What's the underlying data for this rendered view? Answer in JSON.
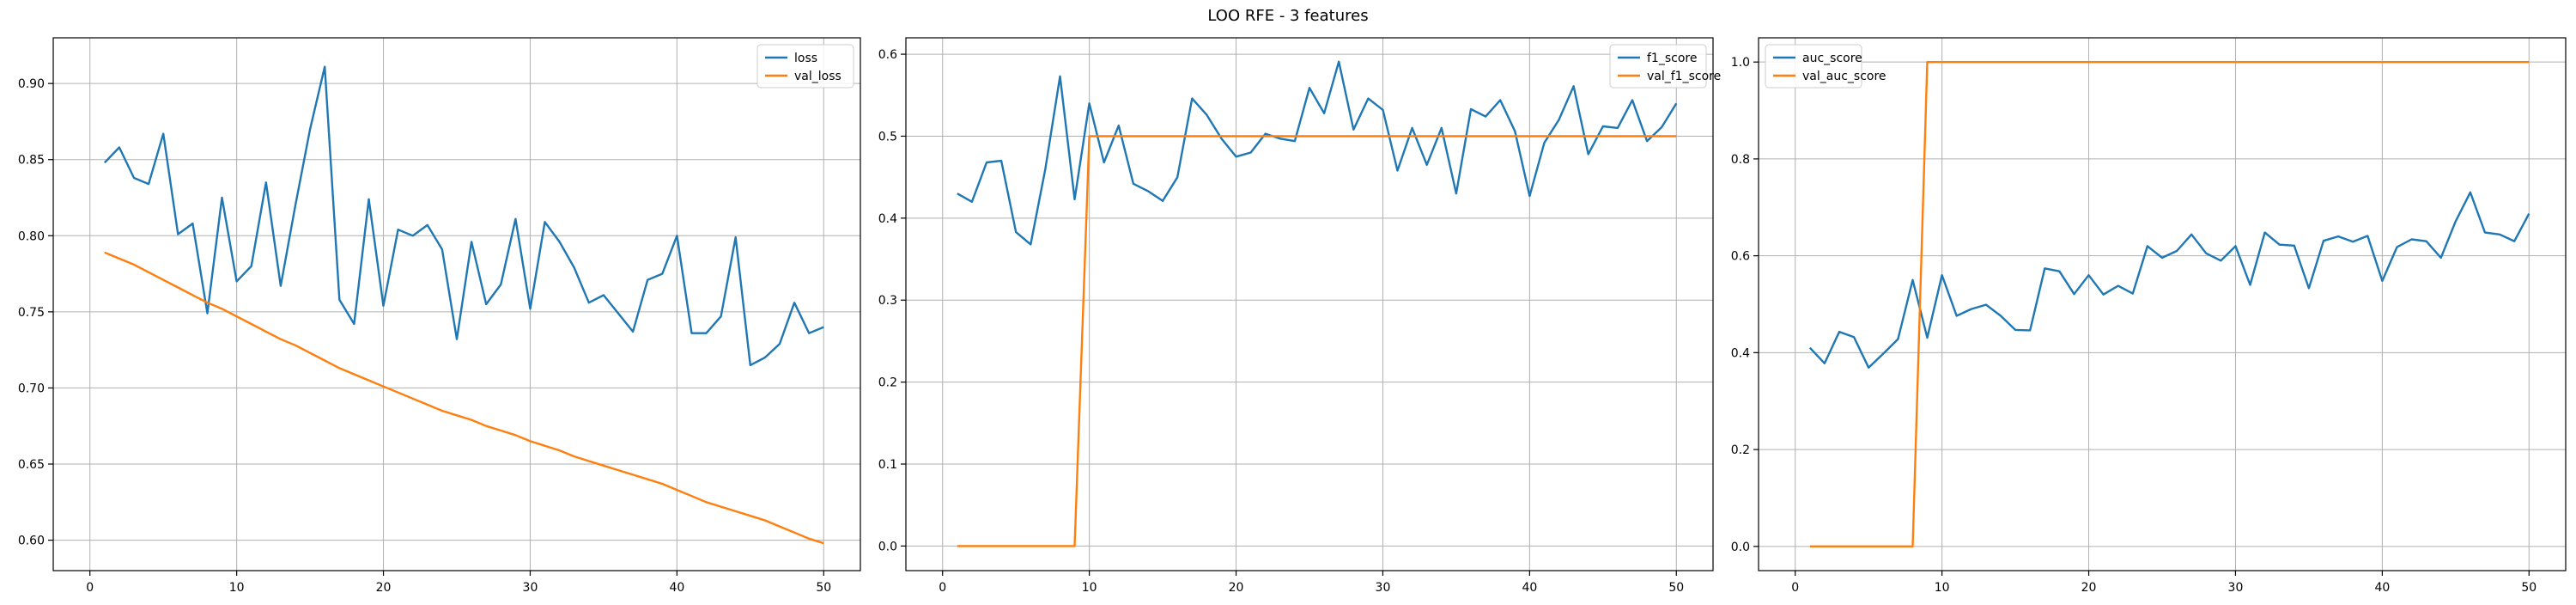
{
  "figure": {
    "title": "LOO RFE - 3 features"
  },
  "colors": {
    "series1": "#1f77b4",
    "series2": "#ff7f0e",
    "grid": "#b0b0b0",
    "axis": "#000000"
  },
  "chart_data": [
    {
      "type": "line",
      "xlim": [
        -2.5,
        52.5
      ],
      "ylim": [
        0.58,
        0.93
      ],
      "xticks": [
        0,
        10,
        20,
        30,
        40,
        50
      ],
      "yticks": [
        0.6,
        0.65,
        0.7,
        0.75,
        0.8,
        0.85,
        0.9
      ],
      "xtick_labels": [
        "0",
        "10",
        "20",
        "30",
        "40",
        "50"
      ],
      "ytick_labels": [
        "0.60",
        "0.65",
        "0.70",
        "0.75",
        "0.80",
        "0.85",
        "0.90"
      ],
      "grid": true,
      "legend_position": "top-right",
      "x": [
        1,
        2,
        3,
        4,
        5,
        6,
        7,
        8,
        9,
        10,
        11,
        12,
        13,
        14,
        15,
        16,
        17,
        18,
        19,
        20,
        21,
        22,
        23,
        24,
        25,
        26,
        27,
        28,
        29,
        30,
        31,
        32,
        33,
        34,
        35,
        36,
        37,
        38,
        39,
        40,
        41,
        42,
        43,
        44,
        45,
        46,
        47,
        48,
        49,
        50
      ],
      "series": [
        {
          "name": "loss",
          "color": "#1f77b4",
          "values": [
            0.848,
            0.858,
            0.838,
            0.834,
            0.867,
            0.801,
            0.808,
            0.749,
            0.825,
            0.77,
            0.78,
            0.835,
            0.767,
            0.82,
            0.87,
            0.911,
            0.758,
            0.742,
            0.824,
            0.754,
            0.804,
            0.8,
            0.807,
            0.791,
            0.732,
            0.796,
            0.755,
            0.768,
            0.811,
            0.752,
            0.809,
            0.796,
            0.779,
            0.756,
            0.761,
            0.749,
            0.737,
            0.771,
            0.775,
            0.8,
            0.736,
            0.736,
            0.747,
            0.799,
            0.715,
            0.72,
            0.729,
            0.756,
            0.736,
            0.74
          ]
        },
        {
          "name": "val_loss",
          "color": "#ff7f0e",
          "values": [
            0.789,
            0.785,
            0.781,
            0.776,
            0.771,
            0.766,
            0.761,
            0.756,
            0.752,
            0.747,
            0.742,
            0.737,
            0.732,
            0.728,
            0.723,
            0.718,
            0.713,
            0.709,
            0.705,
            0.701,
            0.697,
            0.693,
            0.689,
            0.685,
            0.682,
            0.679,
            0.675,
            0.672,
            0.669,
            0.665,
            0.662,
            0.659,
            0.655,
            0.652,
            0.649,
            0.646,
            0.643,
            0.64,
            0.637,
            0.633,
            0.629,
            0.625,
            0.622,
            0.619,
            0.616,
            0.613,
            0.609,
            0.605,
            0.601,
            0.598
          ]
        }
      ]
    },
    {
      "type": "line",
      "xlim": [
        -2.5,
        52.5
      ],
      "ylim": [
        -0.03,
        0.62
      ],
      "xticks": [
        0,
        10,
        20,
        30,
        40,
        50
      ],
      "yticks": [
        0.0,
        0.1,
        0.2,
        0.3,
        0.4,
        0.5,
        0.6
      ],
      "xtick_labels": [
        "0",
        "10",
        "20",
        "30",
        "40",
        "50"
      ],
      "ytick_labels": [
        "0.0",
        "0.1",
        "0.2",
        "0.3",
        "0.4",
        "0.5",
        "0.6"
      ],
      "grid": true,
      "legend_position": "top-right",
      "x": [
        1,
        2,
        3,
        4,
        5,
        6,
        7,
        8,
        9,
        10,
        11,
        12,
        13,
        14,
        15,
        16,
        17,
        18,
        19,
        20,
        21,
        22,
        23,
        24,
        25,
        26,
        27,
        28,
        29,
        30,
        31,
        32,
        33,
        34,
        35,
        36,
        37,
        38,
        39,
        40,
        41,
        42,
        43,
        44,
        45,
        46,
        47,
        48,
        49,
        50
      ],
      "series": [
        {
          "name": "f1_score",
          "color": "#1f77b4",
          "values": [
            0.43,
            0.42,
            0.468,
            0.47,
            0.383,
            0.368,
            0.46,
            0.573,
            0.423,
            0.54,
            0.468,
            0.513,
            0.442,
            0.433,
            0.421,
            0.45,
            0.546,
            0.526,
            0.497,
            0.475,
            0.48,
            0.503,
            0.497,
            0.494,
            0.559,
            0.528,
            0.591,
            0.508,
            0.546,
            0.532,
            0.458,
            0.51,
            0.465,
            0.51,
            0.43,
            0.533,
            0.524,
            0.544,
            0.506,
            0.427,
            0.492,
            0.52,
            0.561,
            0.478,
            0.512,
            0.51,
            0.544,
            0.494,
            0.511,
            0.54
          ]
        },
        {
          "name": "val_f1_score",
          "color": "#ff7f0e",
          "values": [
            0,
            0,
            0,
            0,
            0,
            0,
            0,
            0,
            0,
            0.5,
            0.5,
            0.5,
            0.5,
            0.5,
            0.5,
            0.5,
            0.5,
            0.5,
            0.5,
            0.5,
            0.5,
            0.5,
            0.5,
            0.5,
            0.5,
            0.5,
            0.5,
            0.5,
            0.5,
            0.5,
            0.5,
            0.5,
            0.5,
            0.5,
            0.5,
            0.5,
            0.5,
            0.5,
            0.5,
            0.5,
            0.5,
            0.5,
            0.5,
            0.5,
            0.5,
            0.5,
            0.5,
            0.5,
            0.5,
            0.5
          ]
        }
      ]
    },
    {
      "type": "line",
      "xlim": [
        -2.5,
        52.5
      ],
      "ylim": [
        -0.05,
        1.05
      ],
      "xticks": [
        0,
        10,
        20,
        30,
        40,
        50
      ],
      "yticks": [
        0.0,
        0.2,
        0.4,
        0.6,
        0.8,
        1.0
      ],
      "xtick_labels": [
        "0",
        "10",
        "20",
        "30",
        "40",
        "50"
      ],
      "ytick_labels": [
        "0.0",
        "0.2",
        "0.4",
        "0.6",
        "0.8",
        "1.0"
      ],
      "grid": true,
      "legend_position": "top-left",
      "x": [
        1,
        2,
        3,
        4,
        5,
        6,
        7,
        8,
        9,
        10,
        11,
        12,
        13,
        14,
        15,
        16,
        17,
        18,
        19,
        20,
        21,
        22,
        23,
        24,
        25,
        26,
        27,
        28,
        29,
        30,
        31,
        32,
        33,
        34,
        35,
        36,
        37,
        38,
        39,
        40,
        41,
        42,
        43,
        44,
        45,
        46,
        47,
        48,
        49,
        50
      ],
      "series": [
        {
          "name": "auc_score",
          "color": "#1f77b4",
          "values": [
            0.41,
            0.378,
            0.443,
            0.432,
            0.369,
            0.398,
            0.428,
            0.55,
            0.431,
            0.56,
            0.476,
            0.49,
            0.499,
            0.476,
            0.447,
            0.446,
            0.574,
            0.568,
            0.521,
            0.56,
            0.52,
            0.538,
            0.522,
            0.62,
            0.596,
            0.61,
            0.644,
            0.605,
            0.59,
            0.62,
            0.54,
            0.648,
            0.623,
            0.621,
            0.533,
            0.631,
            0.64,
            0.629,
            0.641,
            0.548,
            0.618,
            0.634,
            0.63,
            0.596,
            0.671,
            0.731,
            0.648,
            0.644,
            0.63,
            0.687
          ]
        },
        {
          "name": "val_auc_score",
          "color": "#ff7f0e",
          "values": [
            0,
            0,
            0,
            0,
            0,
            0,
            0,
            0,
            1,
            1,
            1,
            1,
            1,
            1,
            1,
            1,
            1,
            1,
            1,
            1,
            1,
            1,
            1,
            1,
            1,
            1,
            1,
            1,
            1,
            1,
            1,
            1,
            1,
            1,
            1,
            1,
            1,
            1,
            1,
            1,
            1,
            1,
            1,
            1,
            1,
            1,
            1,
            1,
            1,
            1
          ]
        }
      ]
    }
  ]
}
